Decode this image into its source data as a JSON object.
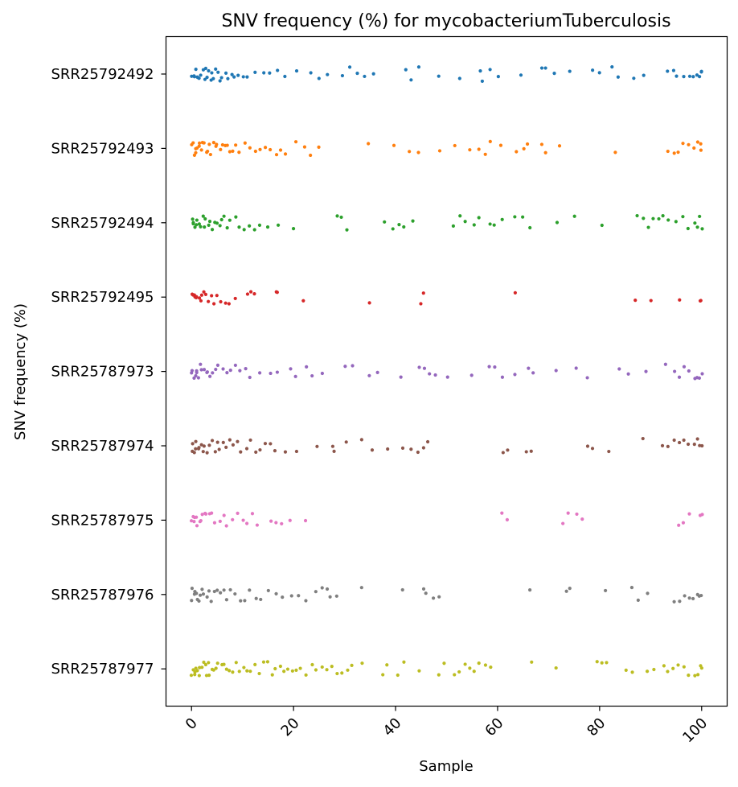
{
  "chart_data": {
    "type": "scatter",
    "title": "SNV frequency (%) for mycobacteriumTuberculosis",
    "xlabel": "Sample",
    "ylabel": "SNV frequency (%)",
    "xlim": [
      -5,
      105
    ],
    "x_ticks": [
      0,
      20,
      40,
      60,
      80,
      100
    ],
    "x_tick_rotation": 45,
    "grid": false,
    "legend": "none",
    "categories": [
      "SRR25792492",
      "SRR25792493",
      "SRR25792494",
      "SRR25792495",
      "SRR25787973",
      "SRR25787974",
      "SRR25787975",
      "SRR25787976",
      "SRR25787977"
    ],
    "series": [
      {
        "name": "SRR25792492",
        "color": "#1f77b4",
        "values": [
          0.1,
          0.3,
          0.5,
          0.7,
          1.0,
          1.3,
          1.6,
          1.9,
          2.2,
          2.5,
          2.8,
          3.1,
          3.4,
          3.7,
          4.0,
          4.4,
          4.8,
          5.2,
          5.6,
          6.0,
          6.6,
          7.2,
          7.8,
          8.5,
          9.3,
          10.2,
          11.0,
          12.5,
          14.0,
          15.5,
          17.0,
          18.5,
          20.7,
          23.5,
          25.0,
          26.5,
          29.5,
          31.0,
          32.5,
          34.0,
          35.5,
          42.0,
          43.0,
          44.5,
          48.5,
          52.5,
          56.5,
          57.0,
          58.5,
          60.0,
          64.5,
          68.5,
          69.5,
          71.0,
          74.0,
          78.5,
          80.0,
          82.5,
          83.5,
          86.5,
          88.5,
          93.5,
          94.5,
          95.0,
          96.5,
          97.5,
          98.5,
          99.2,
          99.6,
          99.9,
          100.0
        ]
      },
      {
        "name": "SRR25792493",
        "color": "#ff7f0e",
        "values": [
          0.1,
          0.3,
          0.5,
          0.7,
          0.9,
          1.1,
          1.4,
          1.7,
          2.0,
          2.3,
          2.6,
          2.9,
          3.2,
          3.5,
          3.8,
          4.2,
          4.6,
          5.0,
          5.5,
          6.0,
          6.5,
          7.0,
          7.5,
          8.0,
          8.8,
          9.5,
          10.5,
          11.5,
          12.5,
          13.5,
          14.5,
          15.5,
          16.5,
          17.5,
          18.5,
          20.5,
          22.0,
          23.5,
          25.0,
          34.5,
          39.5,
          42.5,
          44.5,
          48.5,
          51.5,
          54.5,
          56.5,
          57.5,
          58.5,
          60.5,
          63.5,
          65.0,
          66.0,
          68.5,
          69.5,
          72.0,
          83.0,
          93.5,
          94.5,
          95.5,
          96.5,
          97.5,
          98.5,
          99.3,
          99.7,
          100.0
        ]
      },
      {
        "name": "SRR25792494",
        "color": "#2ca02c",
        "values": [
          0.1,
          0.3,
          0.5,
          0.7,
          0.9,
          1.2,
          1.5,
          1.8,
          2.1,
          2.4,
          2.8,
          3.2,
          3.6,
          4.0,
          4.5,
          5.0,
          5.5,
          6.0,
          6.5,
          7.0,
          7.7,
          8.5,
          9.3,
          10.2,
          11.2,
          12.3,
          13.5,
          15.0,
          17.0,
          20.0,
          28.5,
          29.5,
          30.5,
          38.0,
          39.5,
          40.5,
          41.5,
          43.5,
          51.5,
          52.5,
          53.5,
          55.5,
          56.5,
          58.5,
          59.5,
          61.0,
          63.5,
          65.0,
          66.5,
          71.5,
          75.0,
          80.5,
          87.5,
          88.5,
          89.5,
          90.5,
          91.5,
          92.5,
          93.5,
          95.0,
          96.5,
          97.5,
          98.5,
          99.3,
          99.7,
          100.0
        ]
      },
      {
        "name": "SRR25792495",
        "color": "#d62728",
        "values": [
          0.1,
          0.3,
          0.5,
          0.7,
          0.9,
          1.1,
          1.4,
          1.7,
          2.0,
          2.4,
          2.8,
          3.3,
          3.8,
          4.4,
          5.0,
          5.7,
          6.5,
          7.5,
          8.5,
          11.0,
          11.5,
          12.5,
          16.5,
          17.0,
          22.0,
          35.0,
          45.0,
          45.5,
          63.5,
          87.0,
          90.0,
          95.5,
          99.8,
          100.0
        ]
      },
      {
        "name": "SRR25787973",
        "color": "#9467bd",
        "values": [
          0.1,
          0.3,
          0.5,
          0.7,
          0.9,
          1.2,
          1.5,
          1.8,
          2.1,
          2.5,
          2.9,
          3.3,
          3.8,
          4.3,
          4.8,
          5.3,
          6.0,
          6.8,
          7.5,
          8.5,
          9.5,
          10.5,
          11.5,
          13.5,
          15.5,
          17.0,
          19.5,
          20.5,
          22.5,
          23.5,
          25.5,
          30.0,
          31.5,
          35.0,
          36.5,
          41.0,
          44.5,
          45.5,
          46.5,
          48.0,
          50.0,
          55.0,
          58.5,
          59.5,
          61.0,
          63.5,
          66.0,
          67.0,
          71.5,
          75.5,
          77.5,
          84.0,
          85.5,
          89.0,
          93.0,
          94.5,
          95.5,
          96.5,
          97.5,
          98.5,
          99.3,
          99.7,
          100.0
        ]
      },
      {
        "name": "SRR25787974",
        "color": "#8c564b",
        "values": [
          0.1,
          0.3,
          0.5,
          0.7,
          0.9,
          1.2,
          1.5,
          1.8,
          2.2,
          2.6,
          3.0,
          3.5,
          4.0,
          4.5,
          5.0,
          5.6,
          6.2,
          6.8,
          7.5,
          8.2,
          9.0,
          9.8,
          10.7,
          11.5,
          12.5,
          13.5,
          14.5,
          15.5,
          16.5,
          18.5,
          20.5,
          24.5,
          27.5,
          28.0,
          30.5,
          33.5,
          35.5,
          38.5,
          41.5,
          43.0,
          44.5,
          45.5,
          46.5,
          61.0,
          62.0,
          65.5,
          66.5,
          77.5,
          78.5,
          82.0,
          88.5,
          92.5,
          93.5,
          94.5,
          95.5,
          96.5,
          97.5,
          98.5,
          99.3,
          99.7,
          100.0
        ]
      },
      {
        "name": "SRR25787975",
        "color": "#e377c2",
        "values": [
          0.1,
          0.3,
          0.5,
          0.7,
          0.9,
          1.2,
          1.5,
          1.8,
          2.1,
          2.5,
          2.9,
          3.4,
          4.0,
          4.7,
          5.5,
          6.3,
          7.0,
          8.0,
          9.0,
          10.0,
          11.0,
          12.0,
          13.0,
          15.5,
          16.5,
          17.5,
          19.5,
          22.5,
          61.0,
          62.0,
          73.0,
          74.0,
          75.5,
          76.5,
          95.5,
          96.5,
          97.5,
          99.8,
          100.0
        ]
      },
      {
        "name": "SRR25787976",
        "color": "#7f7f7f",
        "values": [
          0.1,
          0.3,
          0.5,
          0.7,
          0.9,
          1.2,
          1.5,
          1.8,
          2.1,
          2.5,
          2.9,
          3.4,
          3.9,
          4.4,
          5.0,
          5.6,
          6.3,
          7.0,
          7.8,
          8.6,
          9.5,
          10.5,
          11.5,
          12.5,
          13.5,
          15.0,
          16.5,
          18.0,
          19.5,
          21.0,
          22.5,
          24.5,
          25.5,
          26.5,
          27.0,
          28.5,
          33.5,
          41.5,
          45.5,
          46.0,
          47.5,
          48.5,
          66.5,
          73.5,
          74.0,
          81.0,
          86.5,
          87.5,
          89.5,
          94.5,
          95.5,
          96.5,
          97.5,
          98.5,
          99.3,
          99.7,
          100.0
        ]
      },
      {
        "name": "SRR25787977",
        "color": "#bcbd22",
        "values": [
          0.1,
          0.3,
          0.5,
          0.7,
          0.9,
          1.1,
          1.4,
          1.7,
          2.0,
          2.3,
          2.6,
          2.9,
          3.2,
          3.6,
          4.0,
          4.4,
          4.8,
          5.3,
          5.8,
          6.3,
          6.8,
          7.4,
          8.0,
          8.7,
          9.4,
          10.1,
          10.9,
          11.7,
          12.5,
          13.3,
          14.1,
          14.9,
          15.7,
          16.5,
          17.3,
          18.1,
          18.9,
          19.7,
          20.5,
          21.5,
          22.5,
          23.5,
          24.5,
          25.5,
          26.5,
          27.5,
          28.5,
          29.5,
          30.5,
          31.5,
          33.5,
          37.5,
          38.5,
          40.5,
          41.5,
          44.5,
          48.5,
          49.5,
          51.5,
          52.5,
          53.5,
          54.5,
          55.5,
          56.5,
          57.5,
          58.5,
          66.5,
          71.5,
          79.5,
          80.5,
          81.5,
          85.0,
          86.5,
          89.5,
          90.5,
          92.5,
          93.5,
          94.5,
          95.5,
          96.5,
          97.5,
          98.5,
          99.3,
          99.7,
          100.0
        ]
      }
    ]
  }
}
